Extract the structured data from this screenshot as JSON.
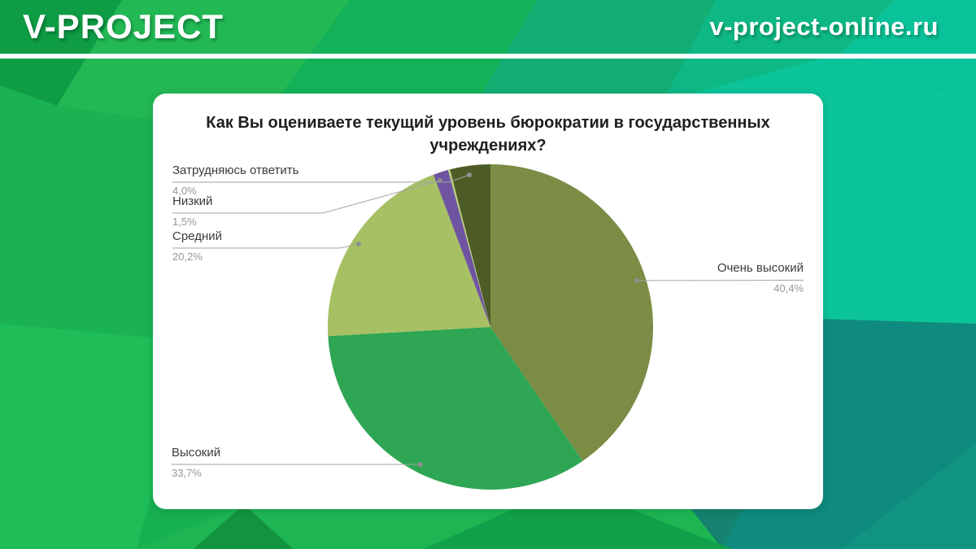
{
  "header": {
    "brand": "V-PROJECT",
    "website": "v-project-online.ru"
  },
  "chart_data": {
    "type": "pie",
    "title": "Как Вы оцениваете текущий уровень бюрократии в государственных учреждениях?",
    "direction": "clockwise",
    "start_angle_deg": 0,
    "legend_position": "callout-labels",
    "segments": [
      {
        "label": "Очень высокий",
        "value": 40.4,
        "pct_label": "40,4%",
        "color": "#7b8c45"
      },
      {
        "label": "Высокий",
        "value": 33.7,
        "pct_label": "33,7%",
        "color": "#2ea653"
      },
      {
        "label": "Средний",
        "value": 20.2,
        "pct_label": "20,2%",
        "color": "#a6c063"
      },
      {
        "label": "Низкий",
        "value": 1.5,
        "pct_label": "1,5%",
        "color": "#6f55a1"
      },
      {
        "label": "",
        "value": 0.2,
        "pct_label": "",
        "color": "#b9cf7c",
        "unlabeled": true
      },
      {
        "label": "Затрудняюсь ответить",
        "value": 4.0,
        "pct_label": "4,0%",
        "color": "#4d5c26"
      }
    ]
  }
}
